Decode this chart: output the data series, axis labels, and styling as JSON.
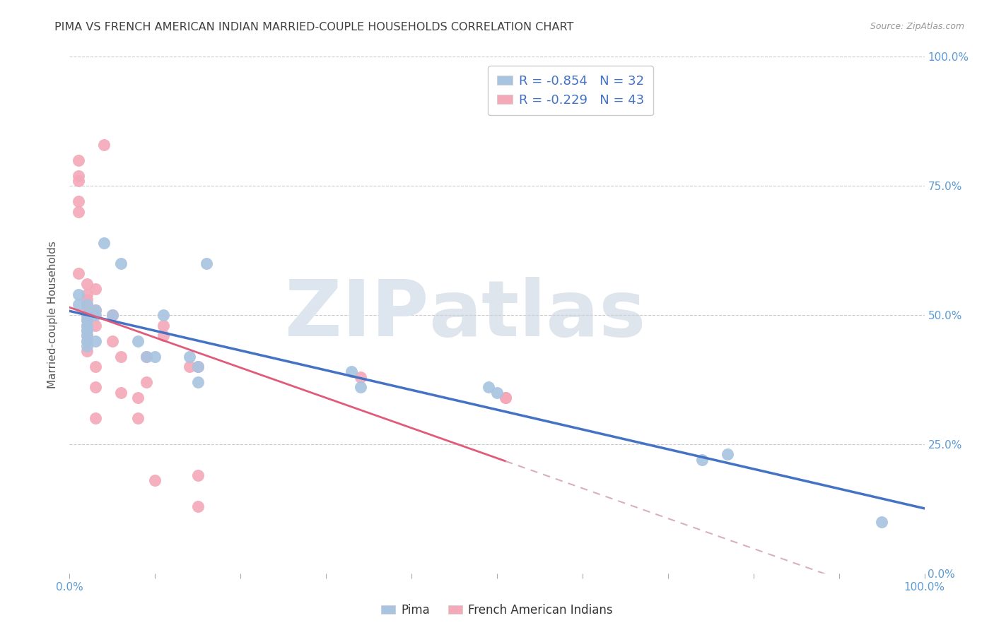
{
  "title": "PIMA VS FRENCH AMERICAN INDIAN MARRIED-COUPLE HOUSEHOLDS CORRELATION CHART",
  "source": "Source: ZipAtlas.com",
  "ylabel": "Married-couple Households",
  "xlim": [
    0,
    1.0
  ],
  "ylim": [
    0,
    1.0
  ],
  "xticks": [
    0.0,
    0.1,
    0.2,
    0.3,
    0.4,
    0.5,
    0.6,
    0.7,
    0.8,
    0.9,
    1.0
  ],
  "yticks": [
    0.0,
    0.25,
    0.5,
    0.75,
    1.0
  ],
  "xtick_labels_edge_only": true,
  "ytick_labels_right": [
    "0.0%",
    "25.0%",
    "50.0%",
    "75.0%",
    "100.0%"
  ],
  "pima_R": -0.854,
  "pima_N": 32,
  "french_R": -0.229,
  "french_N": 43,
  "pima_color": "#a8c4e0",
  "french_color": "#f4a8b8",
  "pima_line_color": "#4472c4",
  "french_line_color": "#e05a7a",
  "french_dashed_color": "#d8b0bc",
  "legend_pima_label": "Pima",
  "legend_french_label": "French American Indians",
  "pima_x": [
    0.01,
    0.01,
    0.02,
    0.02,
    0.02,
    0.02,
    0.02,
    0.02,
    0.02,
    0.02,
    0.02,
    0.03,
    0.03,
    0.03,
    0.04,
    0.05,
    0.06,
    0.08,
    0.09,
    0.1,
    0.11,
    0.14,
    0.15,
    0.15,
    0.16,
    0.33,
    0.34,
    0.49,
    0.5,
    0.74,
    0.77,
    0.95
  ],
  "pima_y": [
    0.54,
    0.52,
    0.52,
    0.5,
    0.49,
    0.48,
    0.47,
    0.47,
    0.46,
    0.45,
    0.44,
    0.51,
    0.5,
    0.45,
    0.64,
    0.5,
    0.6,
    0.45,
    0.42,
    0.42,
    0.5,
    0.42,
    0.4,
    0.37,
    0.6,
    0.39,
    0.36,
    0.36,
    0.35,
    0.22,
    0.23,
    0.1
  ],
  "french_x": [
    0.01,
    0.01,
    0.01,
    0.01,
    0.01,
    0.01,
    0.02,
    0.02,
    0.02,
    0.02,
    0.02,
    0.02,
    0.02,
    0.02,
    0.02,
    0.02,
    0.02,
    0.02,
    0.03,
    0.03,
    0.03,
    0.03,
    0.03,
    0.03,
    0.04,
    0.05,
    0.05,
    0.06,
    0.06,
    0.08,
    0.08,
    0.09,
    0.09,
    0.1,
    0.11,
    0.11,
    0.14,
    0.15,
    0.15,
    0.15,
    0.34,
    0.51,
    0.51
  ],
  "french_y": [
    0.8,
    0.77,
    0.76,
    0.72,
    0.7,
    0.58,
    0.56,
    0.54,
    0.53,
    0.52,
    0.51,
    0.5,
    0.5,
    0.49,
    0.48,
    0.46,
    0.45,
    0.43,
    0.55,
    0.51,
    0.48,
    0.4,
    0.36,
    0.3,
    0.83,
    0.5,
    0.45,
    0.42,
    0.35,
    0.34,
    0.3,
    0.42,
    0.37,
    0.18,
    0.48,
    0.46,
    0.4,
    0.4,
    0.19,
    0.13,
    0.38,
    0.34,
    0.34
  ],
  "background_color": "#ffffff",
  "grid_color": "#cccccc",
  "title_color": "#404040",
  "right_tick_color": "#5b9bd5"
}
